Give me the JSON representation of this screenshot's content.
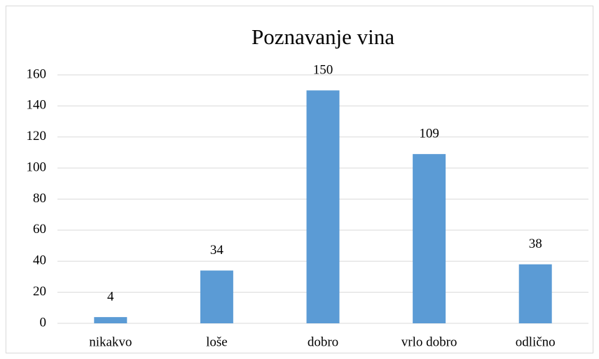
{
  "chart_data": {
    "type": "bar",
    "title": "Poznavanje vina",
    "categories": [
      "nikakvo",
      "loše",
      "dobro",
      "vrlo dobro",
      "odlično"
    ],
    "values": [
      4,
      34,
      150,
      109,
      38
    ],
    "color": "#5b9bd5",
    "ylim": [
      0,
      160
    ],
    "yticks": [
      0,
      20,
      40,
      60,
      80,
      100,
      120,
      140,
      160
    ],
    "grid": true,
    "data_labels": true
  }
}
